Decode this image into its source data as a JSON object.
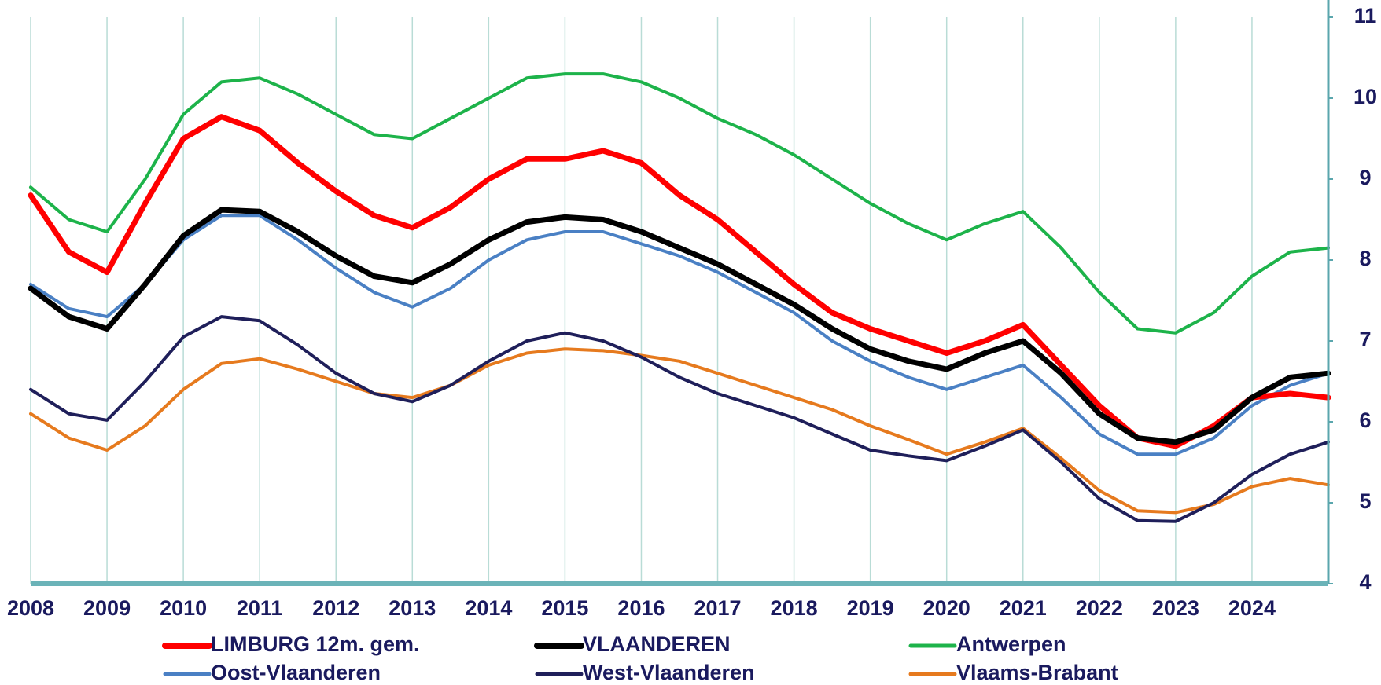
{
  "chart_data": {
    "type": "line",
    "x": [
      2008,
      2008.5,
      2009,
      2009.5,
      2010,
      2010.5,
      2011,
      2011.5,
      2012,
      2012.5,
      2013,
      2013.5,
      2014,
      2014.5,
      2015,
      2015.5,
      2016,
      2016.5,
      2017,
      2017.5,
      2018,
      2018.5,
      2019,
      2019.5,
      2020,
      2020.5,
      2021,
      2021.5,
      2022,
      2022.5,
      2023,
      2023.5,
      2024,
      2024.5,
      2025
    ],
    "xlim": [
      2008,
      2025
    ],
    "xticks": [
      2008,
      2009,
      2010,
      2011,
      2012,
      2013,
      2014,
      2015,
      2016,
      2017,
      2018,
      2019,
      2020,
      2021,
      2022,
      2023,
      2024
    ],
    "ylim": [
      4,
      11
    ],
    "yticks": [
      4,
      5,
      6,
      7,
      8,
      9,
      10,
      11
    ],
    "y_axis_side": "right",
    "grid": "x",
    "series": [
      {
        "name": "LIMBURG 12m. gem.",
        "color": "#ff0000",
        "width": 7,
        "values": [
          8.8,
          8.1,
          7.85,
          8.7,
          9.5,
          9.77,
          9.6,
          9.2,
          8.85,
          8.55,
          8.4,
          8.65,
          9.0,
          9.25,
          9.25,
          9.35,
          9.2,
          8.8,
          8.5,
          8.1,
          7.7,
          7.35,
          7.15,
          7.0,
          6.85,
          7.0,
          7.2,
          6.7,
          6.2,
          5.8,
          5.7,
          5.95,
          6.3,
          6.35,
          6.3
        ]
      },
      {
        "name": "VLAANDEREN",
        "color": "#000000",
        "width": 7,
        "values": [
          7.65,
          7.3,
          7.15,
          7.7,
          8.3,
          8.62,
          8.6,
          8.35,
          8.05,
          7.8,
          7.72,
          7.95,
          8.25,
          8.47,
          8.53,
          8.5,
          8.35,
          8.15,
          7.95,
          7.7,
          7.45,
          7.15,
          6.9,
          6.75,
          6.65,
          6.85,
          7.0,
          6.6,
          6.1,
          5.8,
          5.75,
          5.9,
          6.3,
          6.55,
          6.6
        ]
      },
      {
        "name": "Antwerpen",
        "color": "#1db34a",
        "width": 4,
        "values": [
          8.9,
          8.5,
          8.35,
          9.0,
          9.8,
          10.2,
          10.25,
          10.05,
          9.8,
          9.55,
          9.5,
          9.75,
          10.0,
          10.25,
          10.3,
          10.3,
          10.2,
          10.0,
          9.75,
          9.55,
          9.3,
          9.0,
          8.7,
          8.45,
          8.25,
          8.45,
          8.6,
          8.15,
          7.6,
          7.15,
          7.1,
          7.35,
          7.8,
          8.1,
          8.15
        ]
      },
      {
        "name": "Oost-Vlaanderen",
        "color": "#4a80c4",
        "width": 4,
        "values": [
          7.7,
          7.4,
          7.3,
          7.7,
          8.25,
          8.55,
          8.55,
          8.25,
          7.9,
          7.6,
          7.42,
          7.65,
          8.0,
          8.25,
          8.35,
          8.35,
          8.2,
          8.05,
          7.85,
          7.6,
          7.35,
          7.0,
          6.75,
          6.55,
          6.4,
          6.55,
          6.7,
          6.3,
          5.85,
          5.6,
          5.6,
          5.8,
          6.2,
          6.45,
          6.6
        ]
      },
      {
        "name": "West-Vlaanderen",
        "color": "#1f1f5a",
        "width": 4,
        "values": [
          6.4,
          6.1,
          6.02,
          6.5,
          7.05,
          7.3,
          7.25,
          6.95,
          6.6,
          6.35,
          6.25,
          6.45,
          6.75,
          7.0,
          7.1,
          7.0,
          6.8,
          6.55,
          6.35,
          6.2,
          6.05,
          5.85,
          5.65,
          5.58,
          5.52,
          5.7,
          5.9,
          5.5,
          5.05,
          4.78,
          4.77,
          5.0,
          5.35,
          5.6,
          5.75
        ]
      },
      {
        "name": "Vlaams-Brabant",
        "color": "#e67a1e",
        "width": 4,
        "values": [
          6.1,
          5.8,
          5.65,
          5.95,
          6.4,
          6.72,
          6.78,
          6.65,
          6.5,
          6.35,
          6.3,
          6.45,
          6.7,
          6.85,
          6.9,
          6.88,
          6.82,
          6.75,
          6.6,
          6.45,
          6.3,
          6.15,
          5.95,
          5.78,
          5.6,
          5.75,
          5.92,
          5.55,
          5.15,
          4.9,
          4.88,
          4.98,
          5.2,
          5.3,
          5.22
        ]
      }
    ]
  }
}
